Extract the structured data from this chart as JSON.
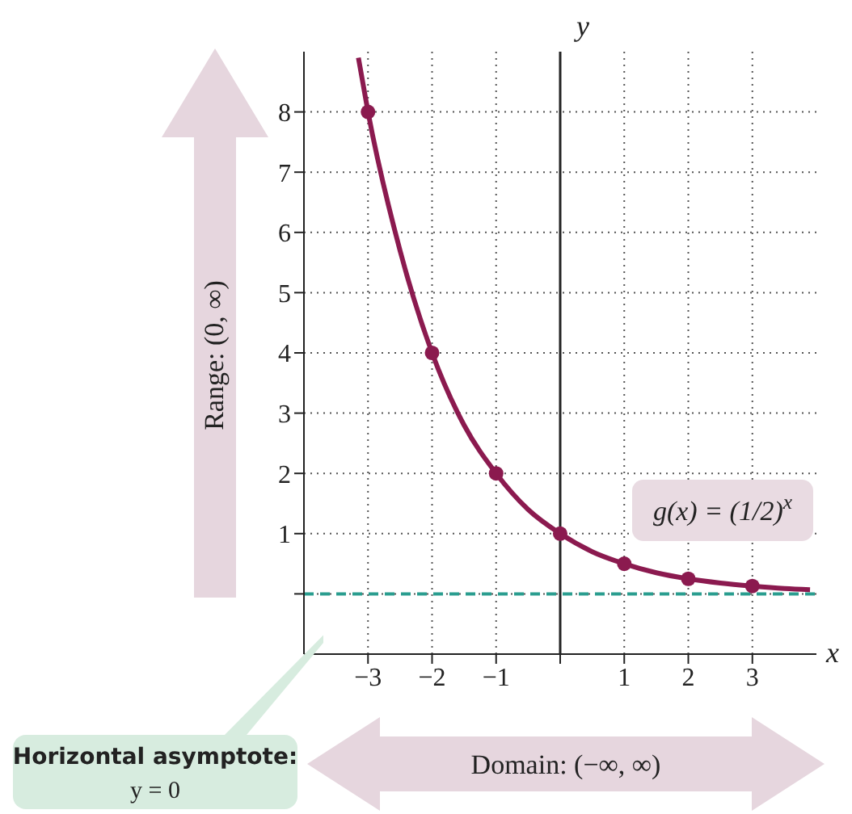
{
  "chart_data": {
    "type": "line",
    "xlabel": "x",
    "ylabel": "y",
    "xlim": [
      -4,
      4
    ],
    "ylim": [
      -1,
      9
    ],
    "xticks": [
      -3,
      -2,
      -1,
      {
        "value": 0,
        "label": null
      },
      1,
      2,
      3
    ],
    "yticks": [
      {
        "value": 0,
        "label": null
      },
      1,
      2,
      3,
      4,
      5,
      6,
      7,
      8
    ],
    "grid": true,
    "series": [
      {
        "color": "#8b1a4f",
        "marker": "none",
        "x": [
          -3.15,
          -3,
          -2.5,
          -2,
          -1.5,
          -1,
          -0.5,
          0,
          0.5,
          1,
          1.5,
          2,
          2.5,
          3,
          3.5,
          3.9
        ],
        "values": [
          8.9,
          8,
          5.7,
          4,
          2.8,
          2,
          1.4,
          1,
          0.7,
          0.5,
          0.35,
          0.25,
          0.18,
          0.13,
          0.09,
          0.07
        ]
      },
      {
        "type": "scatter",
        "color": "#8b1a4f",
        "marker": "circle",
        "x": [
          -3,
          -2,
          -1,
          0,
          1,
          2,
          3
        ],
        "values": [
          8,
          4,
          2,
          1,
          0.5,
          0.25,
          0.13
        ]
      }
    ],
    "ref_lines": [
      {
        "axis": "y",
        "value": 0,
        "color": "#2a9d8f",
        "line_style": "dashed"
      }
    ],
    "annotations": [
      "Range: (0, ∞)",
      "Domain: (−∞, ∞)",
      "g(x) = (1/2)$^{x}$",
      "Horizontal asymptote: y = 0"
    ]
  }
}
